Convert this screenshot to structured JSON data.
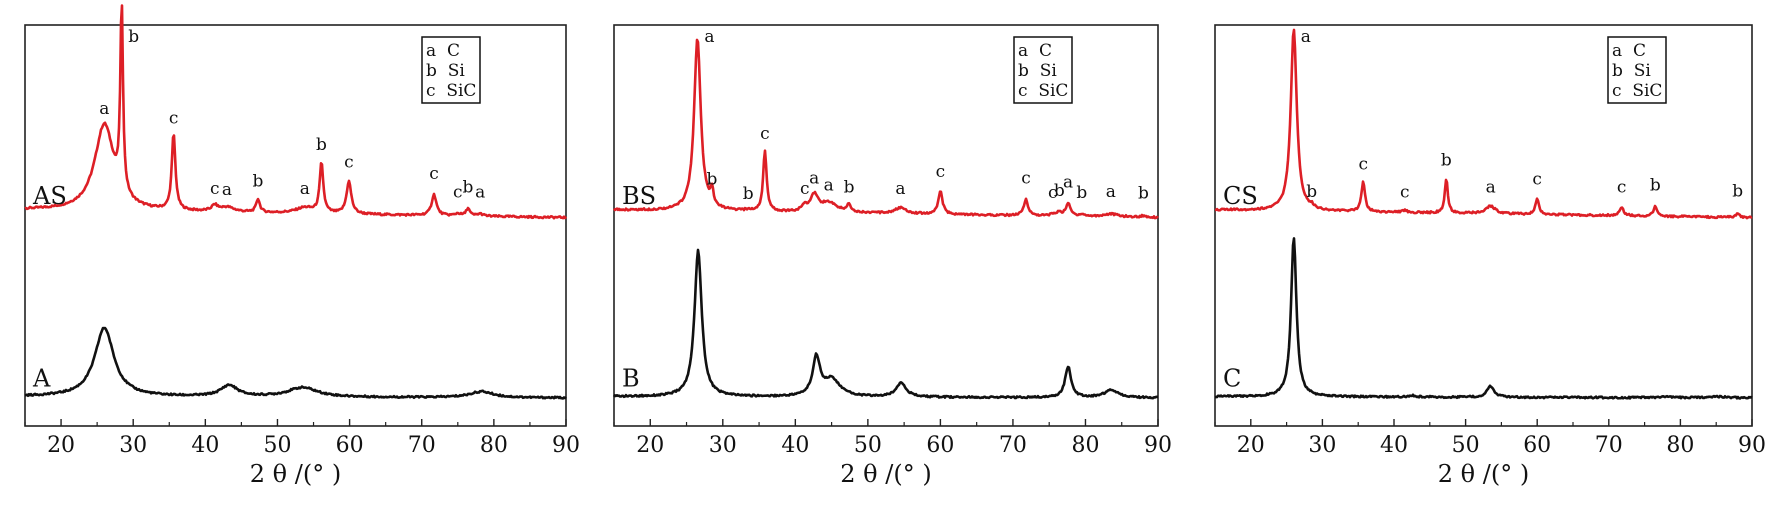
{
  "chart_data": [
    {
      "type": "line",
      "panel": "A",
      "xlabel": "2 θ /(°  )",
      "xlim": [
        15,
        90
      ],
      "xticks": [
        20,
        30,
        40,
        50,
        60,
        70,
        80,
        90
      ],
      "legend": {
        "placement": "top-right",
        "entries": [
          "a  C",
          "b  Si",
          "c  SiC"
        ]
      },
      "colors": {
        "upper": "#dd1f26",
        "lower": "#111111"
      },
      "series": [
        {
          "name": "AS",
          "baseline": 0.1,
          "peaks": [
            {
              "x": 26.0,
              "h": 0.45,
              "w": 1.6,
              "label": "a"
            },
            {
              "x": 28.4,
              "h": 0.98,
              "w": 0.22,
              "label": "b"
            },
            {
              "x": 35.6,
              "h": 0.4,
              "w": 0.3,
              "label": "c"
            },
            {
              "x": 41.3,
              "h": 0.03,
              "w": 0.5,
              "label": "c"
            },
            {
              "x": 43.0,
              "h": 0.025,
              "w": 1.2,
              "label": "a"
            },
            {
              "x": 47.3,
              "h": 0.07,
              "w": 0.3,
              "label": "b"
            },
            {
              "x": 53.8,
              "h": 0.03,
              "w": 1.5,
              "label": "a"
            },
            {
              "x": 56.1,
              "h": 0.26,
              "w": 0.3,
              "label": "b"
            },
            {
              "x": 59.9,
              "h": 0.17,
              "w": 0.4,
              "label": "c"
            },
            {
              "x": 71.7,
              "h": 0.11,
              "w": 0.4,
              "label": "c"
            },
            {
              "x": 75.0,
              "h": 0.012,
              "w": 0.4,
              "label": "c"
            },
            {
              "x": 76.4,
              "h": 0.04,
              "w": 0.3,
              "label": "b"
            },
            {
              "x": 78.1,
              "h": 0.012,
              "w": 0.5,
              "label": "a"
            }
          ]
        },
        {
          "name": "A",
          "baseline": 0.02,
          "peaks": [
            {
              "x": 26.0,
              "h": 0.4,
              "w": 1.6
            },
            {
              "x": 43.3,
              "h": 0.065,
              "w": 1.4
            },
            {
              "x": 53.5,
              "h": 0.055,
              "w": 2.5
            },
            {
              "x": 78.3,
              "h": 0.035,
              "w": 2.0
            }
          ]
        }
      ]
    },
    {
      "type": "line",
      "panel": "B",
      "xlabel": "2 θ /(°  )",
      "xlim": [
        15,
        90
      ],
      "xticks": [
        20,
        30,
        40,
        50,
        60,
        70,
        80,
        90
      ],
      "legend": {
        "placement": "top-right",
        "entries": [
          "a  C",
          "b  Si",
          "c  SiC"
        ]
      },
      "colors": {
        "upper": "#dd1f26",
        "lower": "#111111"
      },
      "series": [
        {
          "name": "BS",
          "baseline": 0.1,
          "peaks": [
            {
              "x": 26.5,
              "h": 0.9,
              "w": 0.55,
              "label": "a"
            },
            {
              "x": 28.5,
              "h": 0.08,
              "w": 0.25,
              "label": "b"
            },
            {
              "x": 33.5,
              "h": 0.005,
              "w": 0.5,
              "label": "b"
            },
            {
              "x": 35.8,
              "h": 0.32,
              "w": 0.28,
              "label": "c"
            },
            {
              "x": 41.3,
              "h": 0.03,
              "w": 0.4,
              "label": "c"
            },
            {
              "x": 42.6,
              "h": 0.085,
              "w": 0.6,
              "label": "a"
            },
            {
              "x": 44.6,
              "h": 0.05,
              "w": 1.5,
              "label": "a"
            },
            {
              "x": 47.4,
              "h": 0.04,
              "w": 0.3,
              "label": "b"
            },
            {
              "x": 54.5,
              "h": 0.03,
              "w": 1.0,
              "label": "a"
            },
            {
              "x": 60.0,
              "h": 0.12,
              "w": 0.35,
              "label": "c"
            },
            {
              "x": 71.8,
              "h": 0.085,
              "w": 0.35,
              "label": "c"
            },
            {
              "x": 75.5,
              "h": 0.01,
              "w": 0.4,
              "label": "c"
            },
            {
              "x": 76.4,
              "h": 0.02,
              "w": 0.3,
              "label": "b"
            },
            {
              "x": 77.6,
              "h": 0.065,
              "w": 0.4,
              "label": "a"
            },
            {
              "x": 79.5,
              "h": 0.01,
              "w": 0.4,
              "label": "b"
            },
            {
              "x": 83.5,
              "h": 0.015,
              "w": 1.2,
              "label": "a"
            },
            {
              "x": 88.0,
              "h": 0.008,
              "w": 0.4,
              "label": "b"
            }
          ]
        },
        {
          "name": "B",
          "baseline": 0.02,
          "peaks": [
            {
              "x": 26.6,
              "h": 0.85,
              "w": 0.6
            },
            {
              "x": 42.9,
              "h": 0.22,
              "w": 0.6
            },
            {
              "x": 45.0,
              "h": 0.1,
              "w": 1.4
            },
            {
              "x": 54.6,
              "h": 0.085,
              "w": 0.8
            },
            {
              "x": 77.6,
              "h": 0.18,
              "w": 0.5
            },
            {
              "x": 83.6,
              "h": 0.045,
              "w": 1.2
            }
          ]
        }
      ]
    },
    {
      "type": "line",
      "panel": "C",
      "xlabel": "2 θ /(°  )",
      "xlim": [
        15,
        90
      ],
      "xticks": [
        20,
        30,
        40,
        50,
        60,
        70,
        80,
        90
      ],
      "legend": {
        "placement": "top-right",
        "entries": [
          "a  C",
          "b  Si",
          "c  SiC"
        ]
      },
      "colors": {
        "upper": "#dd1f26",
        "lower": "#111111"
      },
      "series": [
        {
          "name": "CS",
          "baseline": 0.1,
          "peaks": [
            {
              "x": 26.0,
              "h": 0.95,
              "w": 0.5,
              "label": "a"
            },
            {
              "x": 28.5,
              "h": 0.015,
              "w": 0.3,
              "label": "b"
            },
            {
              "x": 35.7,
              "h": 0.16,
              "w": 0.3,
              "label": "c"
            },
            {
              "x": 41.5,
              "h": 0.012,
              "w": 0.4,
              "label": "c"
            },
            {
              "x": 47.3,
              "h": 0.18,
              "w": 0.25,
              "label": "b"
            },
            {
              "x": 53.5,
              "h": 0.04,
              "w": 0.8,
              "label": "a"
            },
            {
              "x": 60.0,
              "h": 0.08,
              "w": 0.3,
              "label": "c"
            },
            {
              "x": 71.8,
              "h": 0.04,
              "w": 0.35,
              "label": "c"
            },
            {
              "x": 76.5,
              "h": 0.05,
              "w": 0.3,
              "label": "b"
            },
            {
              "x": 88.0,
              "h": 0.018,
              "w": 0.3,
              "label": "b"
            }
          ]
        },
        {
          "name": "C",
          "baseline": 0.02,
          "peaks": [
            {
              "x": 26.0,
              "h": 0.93,
              "w": 0.45
            },
            {
              "x": 42.5,
              "h": 0.01,
              "w": 0.6
            },
            {
              "x": 53.5,
              "h": 0.065,
              "w": 0.6
            },
            {
              "x": 78.0,
              "h": 0.005,
              "w": 1.0
            },
            {
              "x": 85.0,
              "h": 0.008,
              "w": 1.5
            }
          ]
        }
      ]
    }
  ]
}
